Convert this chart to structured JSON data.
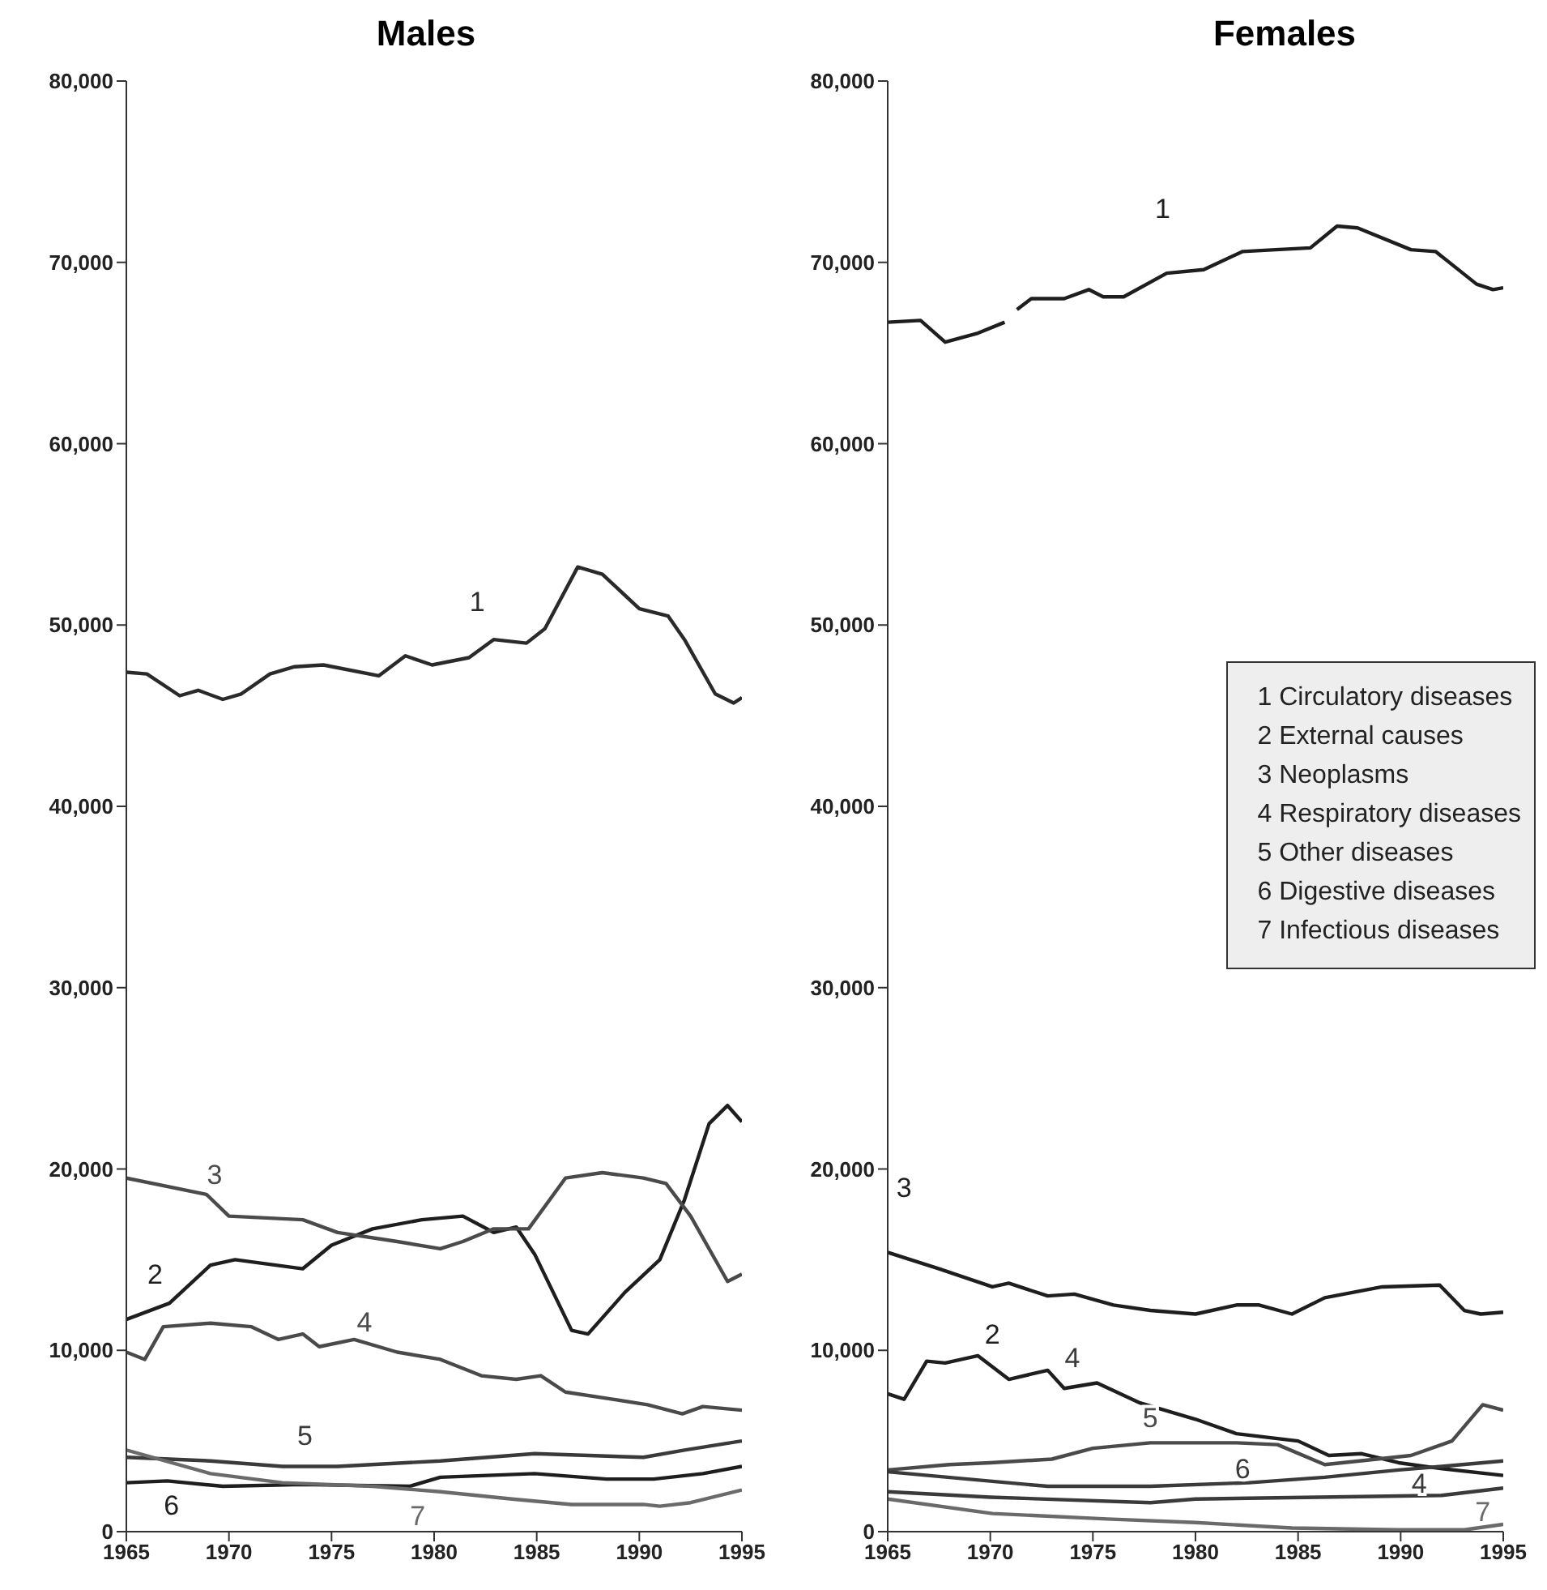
{
  "chart_data": [
    {
      "type": "line",
      "title": "Males",
      "marker": "none",
      "xlim": [
        1965,
        1995
      ],
      "xticks": [
        1965,
        1970,
        1975,
        1980,
        1985,
        1990,
        1995
      ],
      "ylim": [
        0,
        80000
      ],
      "yticks": [
        0,
        {
          "value": 10000,
          "label": "10,000"
        },
        {
          "value": 20000,
          "label": "20,000"
        },
        {
          "value": 30000,
          "label": "30,000"
        },
        {
          "value": 40000,
          "label": "40,000"
        },
        {
          "value": 50000,
          "label": "50,000"
        },
        {
          "value": 60000,
          "label": "60,000"
        },
        {
          "value": 70000,
          "label": "70,000"
        },
        {
          "value": 80000,
          "label": "80,000"
        }
      ],
      "series": [
        {
          "name": "1",
          "color": "#2a2a2a",
          "x": [
            1965,
            1966,
            1967.6,
            1968.5,
            1969.7,
            1970.6,
            1972,
            1973.2,
            1974.6,
            1977.3,
            1978.6,
            1979.9,
            1981.7,
            1982.9,
            1984.5,
            1985.4,
            1987,
            1988.2,
            1990,
            1991.4,
            1992.2,
            1993.7,
            1994.6,
            1995
          ],
          "values": [
            47400,
            47300,
            46100,
            46400,
            45900,
            46200,
            47300,
            47700,
            47800,
            47200,
            48300,
            47800,
            48200,
            49200,
            49000,
            49800,
            53200,
            52800,
            50900,
            50500,
            49200,
            46200,
            45700,
            46000
          ]
        },
        {
          "name": "2",
          "color": "#1e1e1e",
          "x": [
            1965,
            1967.1,
            1969.1,
            1970.3,
            1973.6,
            1975,
            1977,
            1979.4,
            1981.4,
            1982.9,
            1984,
            1984.9,
            1986.7,
            1987.5,
            1989.3,
            1991,
            1992.2,
            1993.4,
            1994.3,
            1995
          ],
          "values": [
            11700,
            12600,
            14700,
            15000,
            14500,
            15800,
            16700,
            17200,
            17400,
            16500,
            16800,
            15300,
            11100,
            10900,
            13200,
            15000,
            18300,
            22500,
            23500,
            22600
          ]
        },
        {
          "name": "3",
          "color": "#4a4a4a",
          "x": [
            1965,
            1968.9,
            1970,
            1973.6,
            1975.3,
            1978.2,
            1980.3,
            1981.4,
            1982.9,
            1984.6,
            1986.4,
            1988.2,
            1990.2,
            1991.3,
            1992.5,
            1994.3,
            1995
          ],
          "values": [
            19500,
            18600,
            17400,
            17200,
            16500,
            16000,
            15600,
            16000,
            16700,
            16700,
            19500,
            19800,
            19500,
            19200,
            17400,
            13800,
            14200
          ]
        },
        {
          "name": "4",
          "color": "#4a4a4a",
          "x": [
            1965,
            1965.9,
            1966.8,
            1969.1,
            1971.1,
            1972.4,
            1973.6,
            1974.4,
            1976.1,
            1978.2,
            1980.3,
            1982.3,
            1984,
            1985.2,
            1986.4,
            1988.7,
            1990.4,
            1992.1,
            1993.1,
            1995
          ],
          "values": [
            9900,
            9500,
            11300,
            11500,
            11300,
            10600,
            10900,
            10200,
            10600,
            9900,
            9500,
            8600,
            8400,
            8600,
            7700,
            7300,
            7000,
            6500,
            6900,
            6700
          ]
        },
        {
          "name": "5",
          "color": "#3a3a3a",
          "x": [
            1965,
            1969.1,
            1972.6,
            1975.3,
            1980.3,
            1984.9,
            1990.2,
            1992.2,
            1995
          ],
          "values": [
            4100,
            3900,
            3600,
            3600,
            3900,
            4300,
            4100,
            4500,
            5000
          ]
        },
        {
          "name": "6",
          "color": "#1e1e1e",
          "x": [
            1965,
            1967,
            1969.7,
            1973.6,
            1978.8,
            1980.3,
            1984.9,
            1988.4,
            1990.7,
            1993.1,
            1995
          ],
          "values": [
            2700,
            2800,
            2500,
            2600,
            2500,
            3000,
            3200,
            2900,
            2900,
            3200,
            3600
          ]
        },
        {
          "name": "7",
          "color": "#6a6a6a",
          "x": [
            1965,
            1969.1,
            1972.6,
            1977,
            1980.3,
            1983.8,
            1986.7,
            1990.2,
            1991,
            1992.5,
            1995
          ],
          "values": [
            4500,
            3200,
            2700,
            2500,
            2200,
            1800,
            1500,
            1500,
            1400,
            1600,
            2300
          ]
        }
      ]
    },
    {
      "type": "line",
      "title": "Females",
      "marker": "none",
      "xlim": [
        1965,
        1995
      ],
      "xticks": [
        1965,
        1970,
        1975,
        1980,
        1985,
        1990,
        1995
      ],
      "ylim": [
        0,
        80000
      ],
      "yticks": [
        0,
        {
          "value": 10000,
          "label": "10,000"
        },
        {
          "value": 20000,
          "label": "20,000"
        },
        {
          "value": 30000,
          "label": "30,000"
        },
        {
          "value": 40000,
          "label": "40,000"
        },
        {
          "value": 50000,
          "label": "50,000"
        },
        {
          "value": 60000,
          "label": "60,000"
        },
        {
          "value": 70000,
          "label": "70,000"
        },
        {
          "value": 80000,
          "label": "80,000"
        }
      ],
      "series": [
        {
          "name": "1",
          "color": "#1e1e1e",
          "x": [
            1965,
            1966.6,
            1967.8,
            1969.4,
            1970.7,
            1971,
            1971.3,
            1972,
            1973.6,
            1974.8,
            1975.5,
            1976.5,
            1978.6,
            1980.4,
            1982.3,
            1983.9,
            1985.6,
            1986.9,
            1987.9,
            1990.5,
            1991.7,
            1993.7,
            1994.5,
            1995
          ],
          "values": [
            66700,
            66800,
            65600,
            66100,
            66700,
            null,
            67400,
            68000,
            68000,
            68500,
            68100,
            68100,
            69400,
            69600,
            70600,
            70700,
            70800,
            72000,
            71900,
            70700,
            70600,
            68800,
            68500,
            68600
          ]
        },
        {
          "name": "2",
          "color": "#1e1e1e",
          "x": [
            1965,
            1965.8,
            1966.9,
            1967.8,
            1969.4,
            1970.9,
            1972.8,
            1973.6,
            1975.2,
            1977.3,
            1980,
            1982,
            1985,
            1986.5,
            1988.1,
            1989.9,
            1991.8,
            1995
          ],
          "values": [
            7600,
            7300,
            9400,
            9300,
            9700,
            8400,
            8900,
            7900,
            8200,
            7100,
            6200,
            5400,
            5000,
            4200,
            4300,
            3800,
            3500,
            3100
          ]
        },
        {
          "name": "3",
          "color": "#1e1e1e",
          "x": [
            1965,
            1967.5,
            1970.1,
            1970.9,
            1972.8,
            1974.1,
            1976,
            1977.8,
            1980,
            1982,
            1983.1,
            1984.7,
            1986.3,
            1989.1,
            1991.9,
            1993.1,
            1993.9,
            1995
          ],
          "values": [
            15400,
            14500,
            13500,
            13700,
            13000,
            13100,
            12500,
            12200,
            12000,
            12500,
            12500,
            12000,
            12900,
            13500,
            13600,
            12200,
            12000,
            12100
          ]
        },
        {
          "name": "4",
          "color": "#3a3a3a",
          "x": [
            1965,
            1970,
            1977.8,
            1980,
            1986,
            1992,
            1995
          ],
          "values": [
            2200,
            1900,
            1600,
            1800,
            1900,
            2000,
            2400
          ]
        },
        {
          "name": "5",
          "color": "#4a4a4a",
          "x": [
            1965,
            1968,
            1970,
            1973,
            1975,
            1977.8,
            1982,
            1984,
            1986.3,
            1988,
            1990.5,
            1992.5,
            1994,
            1995
          ],
          "values": [
            3400,
            3700,
            3800,
            4000,
            4600,
            4900,
            4900,
            4800,
            3700,
            3900,
            4200,
            5000,
            7000,
            6700
          ]
        },
        {
          "name": "6",
          "color": "#3a3a3a",
          "x": [
            1965,
            1968.9,
            1972.8,
            1977.8,
            1982.6,
            1986.3,
            1989.9,
            1992,
            1995
          ],
          "values": [
            3300,
            2900,
            2500,
            2500,
            2700,
            3000,
            3400,
            3600,
            3900
          ]
        },
        {
          "name": "7",
          "color": "#6a6a6a",
          "x": [
            1965,
            1970.1,
            1975.7,
            1980,
            1984.7,
            1989.9,
            1993.1,
            1995
          ],
          "values": [
            1800,
            1000,
            700,
            500,
            200,
            100,
            100,
            400
          ]
        }
      ],
      "annotations": [
        "1 Circulatory diseases",
        "2 External causes",
        "3 Neoplasms",
        "4 Respiratory diseases",
        "5 Other diseases",
        "6 Digestive diseases",
        "7 Infectious diseases"
      ]
    }
  ]
}
